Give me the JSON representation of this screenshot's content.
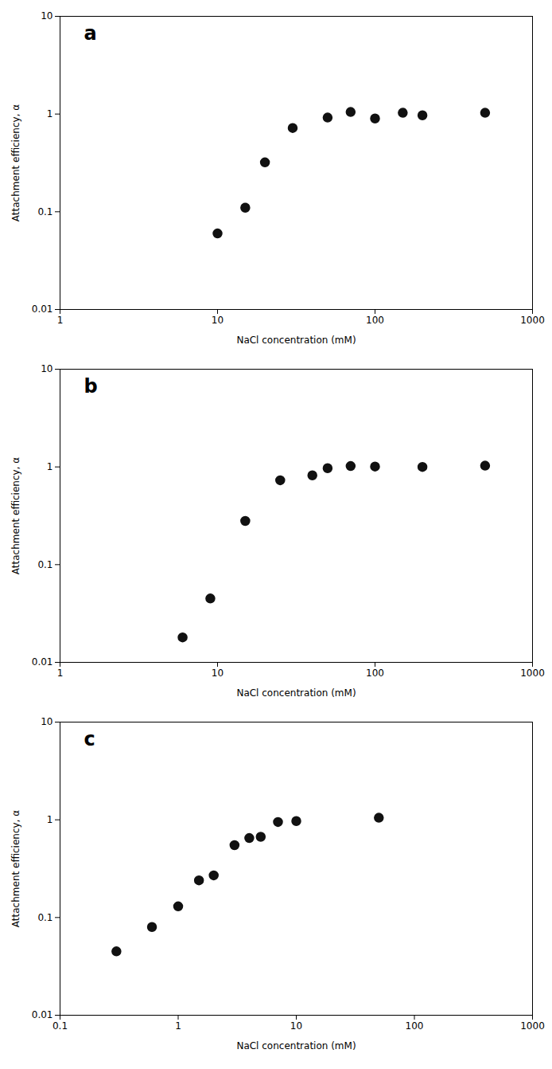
{
  "chart_data": [
    {
      "type": "scatter",
      "annotations": [
        "a"
      ],
      "xlabel": "NaCl concentration (mM)",
      "ylabel": "Attachment efficiency, α",
      "x": [
        10,
        15,
        20,
        30,
        50,
        70,
        100,
        150,
        200,
        500
      ],
      "values": [
        0.06,
        0.11,
        0.32,
        0.72,
        0.92,
        1.05,
        0.9,
        1.03,
        0.97,
        1.03
      ],
      "color": "#111111",
      "marker": "circle",
      "log": true,
      "grid": false,
      "xlim": [
        1,
        1000
      ],
      "ylim": [
        0.01,
        10
      ],
      "xticks": [
        1,
        10,
        100,
        1000
      ],
      "yticks": [
        0.01,
        0.1,
        1,
        10
      ]
    },
    {
      "type": "scatter",
      "annotations": [
        "b"
      ],
      "xlabel": "NaCl concentration (mM)",
      "ylabel": "Attachment efficiency, α",
      "x": [
        6,
        9,
        15,
        25,
        40,
        50,
        70,
        100,
        200,
        500
      ],
      "values": [
        0.018,
        0.045,
        0.28,
        0.73,
        0.82,
        0.97,
        1.02,
        1.01,
        1.0,
        1.03
      ],
      "color": "#111111",
      "marker": "circle",
      "log": true,
      "grid": false,
      "xlim": [
        1,
        1000
      ],
      "ylim": [
        0.01,
        10
      ],
      "xticks": [
        1,
        10,
        100,
        1000
      ],
      "yticks": [
        0.01,
        0.1,
        1,
        10
      ]
    },
    {
      "type": "scatter",
      "annotations": [
        "c"
      ],
      "xlabel": "NaCl concentration (mM)",
      "ylabel": "Attachment efficiency, α",
      "x": [
        0.3,
        0.6,
        1.0,
        1.5,
        2.0,
        3.0,
        4.0,
        5.0,
        7.0,
        10,
        50
      ],
      "values": [
        0.045,
        0.08,
        0.13,
        0.24,
        0.27,
        0.55,
        0.65,
        0.67,
        0.95,
        0.97,
        1.05
      ],
      "color": "#111111",
      "marker": "circle",
      "log": true,
      "grid": false,
      "xlim": [
        0.1,
        1000
      ],
      "ylim": [
        0.01,
        10
      ],
      "xticks": [
        0.1,
        1,
        10,
        100,
        1000
      ],
      "yticks": [
        0.01,
        0.1,
        1,
        10
      ]
    }
  ]
}
